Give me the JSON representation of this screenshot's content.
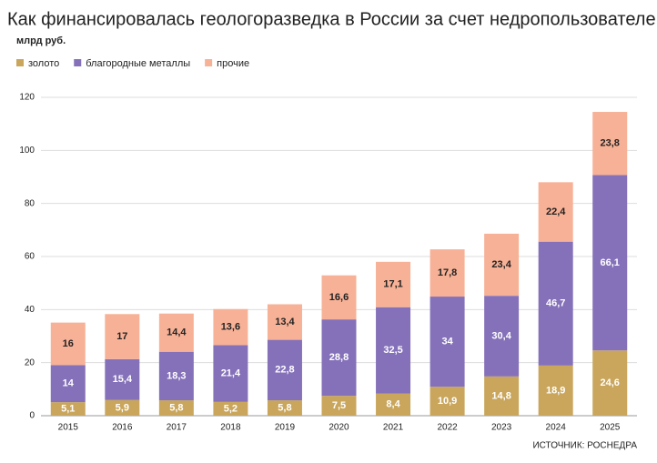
{
  "chart_data": {
    "type": "stacked_bar",
    "title": "Как финансировалась геологоразведка в России за счет недропользователей",
    "subtitle": "млрд руб.",
    "source": "ИСТОЧНИК: РОСНЕДРА",
    "categories": [
      "2015",
      "2016",
      "2017",
      "2018",
      "2019",
      "2020",
      "2021",
      "2022",
      "2023",
      "2024",
      "2025"
    ],
    "series": [
      {
        "name": "золото",
        "color": "#c9a65c",
        "label_color": "#ffffff",
        "values": [
          5.1,
          5.9,
          5.8,
          5.2,
          5.8,
          7.5,
          8.4,
          10.9,
          14.8,
          18.9,
          24.6
        ],
        "value_labels": [
          "5,1",
          "5,9",
          "5,8",
          "5,2",
          "5,8",
          "7,5",
          "8,4",
          "10,9",
          "14,8",
          "18,9",
          "24,6"
        ]
      },
      {
        "name": "благородные металлы",
        "color": "#8571b9",
        "label_color": "#ffffff",
        "values": [
          14,
          15.4,
          18.3,
          21.4,
          22.8,
          28.8,
          32.5,
          34,
          30.4,
          46.7,
          66.1
        ],
        "value_labels": [
          "14",
          "15,4",
          "18,3",
          "21,4",
          "22,8",
          "28,8",
          "32,5",
          "34",
          "30,4",
          "46,7",
          "66,1"
        ]
      },
      {
        "name": "прочие",
        "color": "#f7b196",
        "label_color": "#222222",
        "values": [
          16,
          17,
          14.4,
          13.6,
          13.4,
          16.6,
          17.1,
          17.8,
          23.4,
          22.4,
          23.8
        ],
        "value_labels": [
          "16",
          "17",
          "14,4",
          "13,6",
          "13,4",
          "16,6",
          "17,1",
          "17,8",
          "23,4",
          "22,4",
          "23,8"
        ]
      }
    ],
    "ylim": [
      0,
      120
    ],
    "yticks": [
      0,
      20,
      40,
      60,
      80,
      100,
      120
    ],
    "grid": true
  }
}
